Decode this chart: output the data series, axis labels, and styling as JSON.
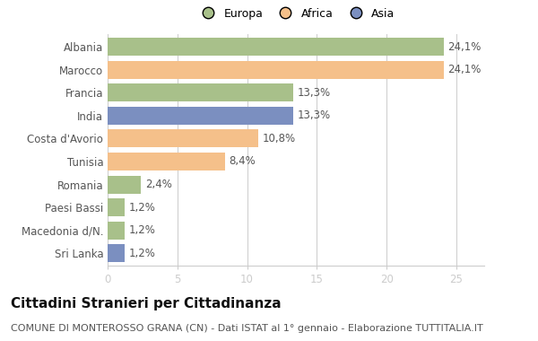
{
  "categories": [
    "Albania",
    "Marocco",
    "Francia",
    "India",
    "Costa d'Avorio",
    "Tunisia",
    "Romania",
    "Paesi Bassi",
    "Macedonia d/N.",
    "Sri Lanka"
  ],
  "values": [
    24.1,
    24.1,
    13.3,
    13.3,
    10.8,
    8.4,
    2.4,
    1.2,
    1.2,
    1.2
  ],
  "labels": [
    "24,1%",
    "24,1%",
    "13,3%",
    "13,3%",
    "10,8%",
    "8,4%",
    "2,4%",
    "1,2%",
    "1,2%",
    "1,2%"
  ],
  "colors": [
    "#a8c08a",
    "#f5c08a",
    "#a8c08a",
    "#7b8fc0",
    "#f5c08a",
    "#f5c08a",
    "#a8c08a",
    "#a8c08a",
    "#a8c08a",
    "#7b8fc0"
  ],
  "legend": [
    {
      "label": "Europa",
      "color": "#a8c08a"
    },
    {
      "label": "Africa",
      "color": "#f5c08a"
    },
    {
      "label": "Asia",
      "color": "#7b8fc0"
    }
  ],
  "xlim": [
    0,
    27
  ],
  "xticks": [
    0,
    5,
    10,
    15,
    20,
    25
  ],
  "title": "Cittadini Stranieri per Cittadinanza",
  "subtitle": "COMUNE DI MONTEROSSO GRANA (CN) - Dati ISTAT al 1° gennaio - Elaborazione TUTTITALIA.IT",
  "background_color": "#ffffff",
  "bar_height": 0.78,
  "grid_color": "#cccccc",
  "text_color": "#555555",
  "label_fontsize": 8.5,
  "tick_fontsize": 8.5,
  "title_fontsize": 11,
  "subtitle_fontsize": 8
}
